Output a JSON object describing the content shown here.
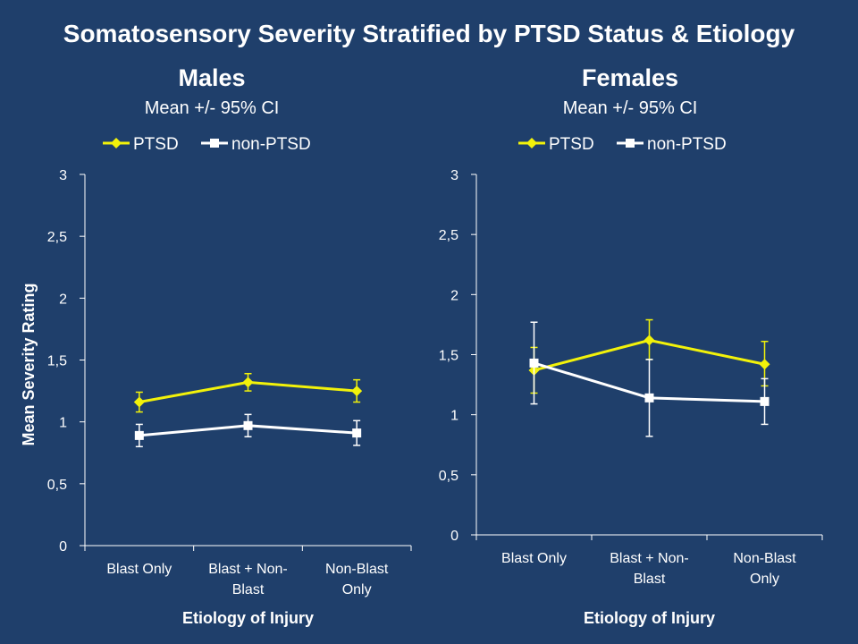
{
  "title": "Somatosensory Severity Stratified by PTSD Status & Etiology",
  "colors": {
    "background": "#1f3f6b",
    "ptsd": "#f2f20a",
    "non_ptsd": "#ffffff",
    "axis": "#ffffff"
  },
  "chart_data": [
    {
      "type": "line",
      "title": "Males",
      "subtitle": "Mean +/- 95% CI",
      "xlabel": "Etiology of Injury",
      "ylabel": "Mean Severity Rating",
      "ylim": [
        0,
        3
      ],
      "yticks": [
        "0",
        "0,5",
        "1",
        "1,5",
        "2",
        "2,5",
        "3"
      ],
      "categories": [
        [
          "Blast Only"
        ],
        [
          "Blast + Non-",
          "Blast"
        ],
        [
          "Non-Blast",
          "Only"
        ]
      ],
      "legend": "top",
      "series": [
        {
          "name": "PTSD",
          "marker": "diamond",
          "values": [
            1.16,
            1.32,
            1.25
          ],
          "ci_low": [
            1.08,
            1.25,
            1.16
          ],
          "ci_high": [
            1.24,
            1.39,
            1.34
          ]
        },
        {
          "name": "non-PTSD",
          "marker": "square",
          "values": [
            0.89,
            0.97,
            0.91
          ],
          "ci_low": [
            0.8,
            0.88,
            0.81
          ],
          "ci_high": [
            0.98,
            1.06,
            1.01
          ]
        }
      ]
    },
    {
      "type": "line",
      "title": "Females",
      "subtitle": "Mean +/- 95% CI",
      "xlabel": "Etiology of Injury",
      "ylabel": "",
      "ylim": [
        0,
        3
      ],
      "yticks": [
        "0",
        "0,5",
        "1",
        "1,5",
        "2",
        "2,5",
        "3"
      ],
      "categories": [
        [
          "Blast Only"
        ],
        [
          "Blast + Non-",
          "Blast"
        ],
        [
          "Non-Blast",
          "Only"
        ]
      ],
      "legend": "top",
      "series": [
        {
          "name": "PTSD",
          "marker": "diamond",
          "values": [
            1.37,
            1.62,
            1.42
          ],
          "ci_low": [
            1.18,
            1.46,
            1.24
          ],
          "ci_high": [
            1.56,
            1.79,
            1.61
          ]
        },
        {
          "name": "non-PTSD",
          "marker": "square",
          "values": [
            1.43,
            1.14,
            1.11
          ],
          "ci_low": [
            1.09,
            0.82,
            0.92
          ],
          "ci_high": [
            1.77,
            1.46,
            1.3
          ]
        }
      ]
    }
  ]
}
